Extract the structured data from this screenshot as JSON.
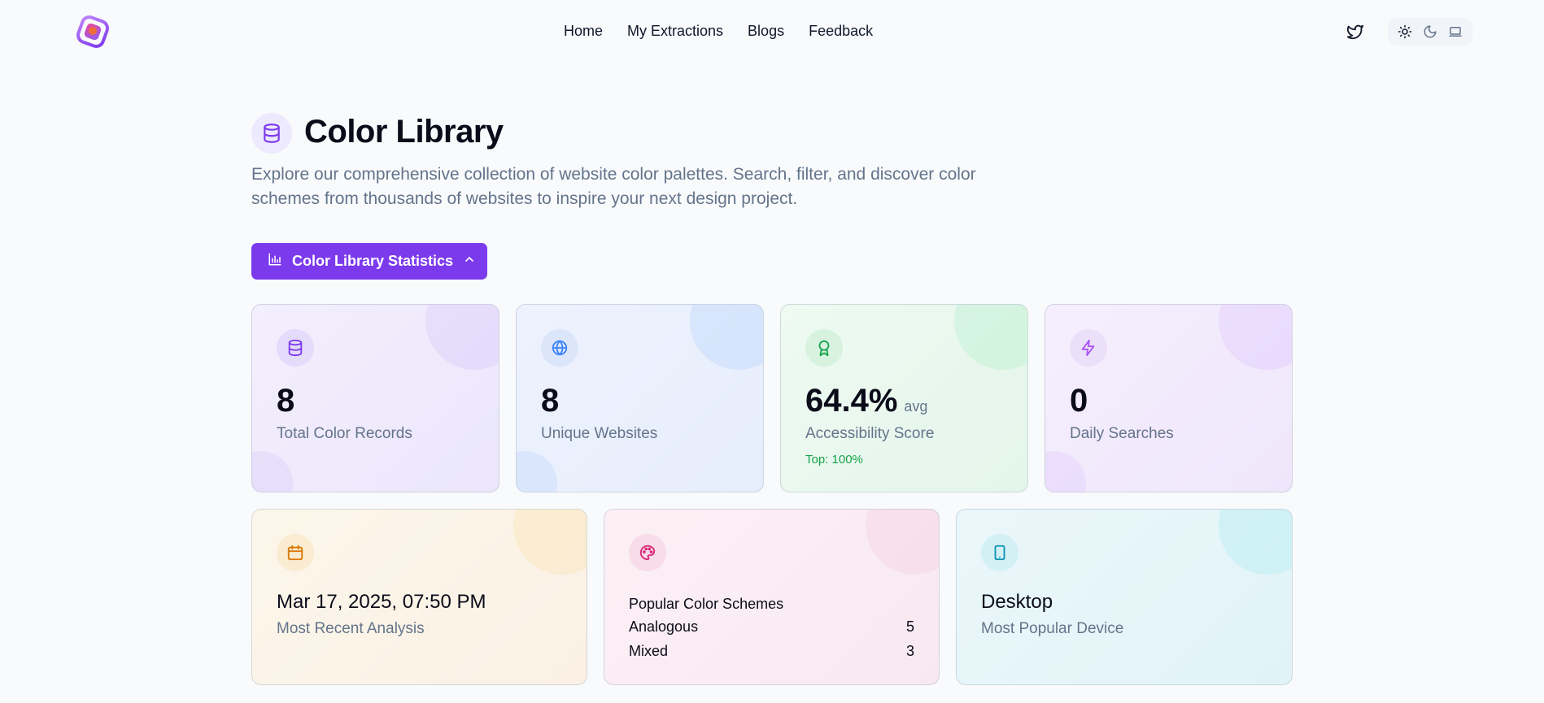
{
  "nav": {
    "links": [
      "Home",
      "My Extractions",
      "Blogs",
      "Feedback"
    ],
    "icons": {
      "logo": "app-logo",
      "social": "twitter-icon",
      "theme": [
        "sun-icon",
        "moon-icon",
        "laptop-icon"
      ]
    }
  },
  "header": {
    "title": "Color Library",
    "description": "Explore our comprehensive collection of website color palettes. Search, filter, and discover color schemes from thousands of websites to inspire your next design project.",
    "icon": "database-icon"
  },
  "stats_button": {
    "label": "Color Library Statistics",
    "icon": "bar-chart-icon",
    "chevron": "chevron-up-icon"
  },
  "cards": {
    "total": {
      "value": "8",
      "label": "Total Color Records",
      "icon": "database-icon"
    },
    "websites": {
      "value": "8",
      "label": "Unique Websites",
      "icon": "globe-icon"
    },
    "accessibility": {
      "value": "64.4%",
      "suffix": "avg",
      "label": "Accessibility Score",
      "sub": "Top: 100%",
      "icon": "award-icon"
    },
    "searches": {
      "value": "0",
      "label": "Daily Searches",
      "icon": "zap-icon"
    },
    "recent": {
      "value": "Mar 17, 2025, 07:50 PM",
      "label": "Most Recent Analysis",
      "icon": "calendar-icon"
    },
    "schemes": {
      "title": "Popular Color Schemes",
      "icon": "palette-icon",
      "rows": [
        {
          "name": "Analogous",
          "count": "5"
        },
        {
          "name": "Mixed",
          "count": "3"
        }
      ]
    },
    "device": {
      "value": "Desktop",
      "label": "Most Popular Device",
      "icon": "tablet-icon"
    }
  },
  "colors": {
    "accent": "#7c3aed",
    "muted": "#64748b",
    "success": "#16a34a"
  }
}
